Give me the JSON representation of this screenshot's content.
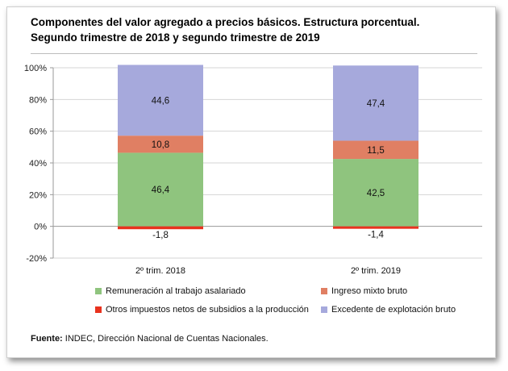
{
  "title_lines": [
    "Componentes del valor agregado a precios básicos. Estructura porcentual.",
    "Segundo trimestre de 2018 y segundo trimestre de 2019"
  ],
  "source": {
    "label": "Fuente:",
    "text": " INDEC, Dirección Nacional de Cuentas Nacionales."
  },
  "chart_data": {
    "type": "bar",
    "stacked": true,
    "categories": [
      "2º trim. 2018",
      "2º trim. 2019"
    ],
    "ylim": [
      -20,
      100
    ],
    "y_ticks": [
      -20,
      0,
      20,
      40,
      60,
      80,
      100
    ],
    "y_tick_labels": [
      "-20%",
      "0%",
      "20%",
      "40%",
      "60%",
      "80%",
      "100%"
    ],
    "grid": true,
    "legend_position": "bottom",
    "series": [
      {
        "name": "Remuneración al trabajo asalariado",
        "values": [
          46.4,
          42.5
        ],
        "labels": [
          "46,4",
          "42,5"
        ],
        "color": "#8fc47e"
      },
      {
        "name": "Ingreso mixto bruto",
        "values": [
          10.8,
          11.5
        ],
        "labels": [
          "10,8",
          "11,5"
        ],
        "color": "#e07f63"
      },
      {
        "name": "Excedente de explotación bruto",
        "values": [
          44.6,
          47.4
        ],
        "labels": [
          "44,6",
          "47,4"
        ],
        "color": "#a6a9dc"
      },
      {
        "name": "Otros impuestos netos de subsidios a la producción",
        "values": [
          -1.8,
          -1.4
        ],
        "labels": [
          "-1,8",
          "-1,4"
        ],
        "color": "#e8321e"
      }
    ]
  },
  "legend": [
    {
      "label": "Remuneración al trabajo asalariado",
      "color": "#8fc47e"
    },
    {
      "label": "Ingreso mixto bruto",
      "color": "#e07f63"
    },
    {
      "label": "Otros impuestos netos de subsidios a la producción",
      "color": "#e8321e"
    },
    {
      "label": "Excedente de explotación bruto",
      "color": "#a6a9dc"
    }
  ]
}
